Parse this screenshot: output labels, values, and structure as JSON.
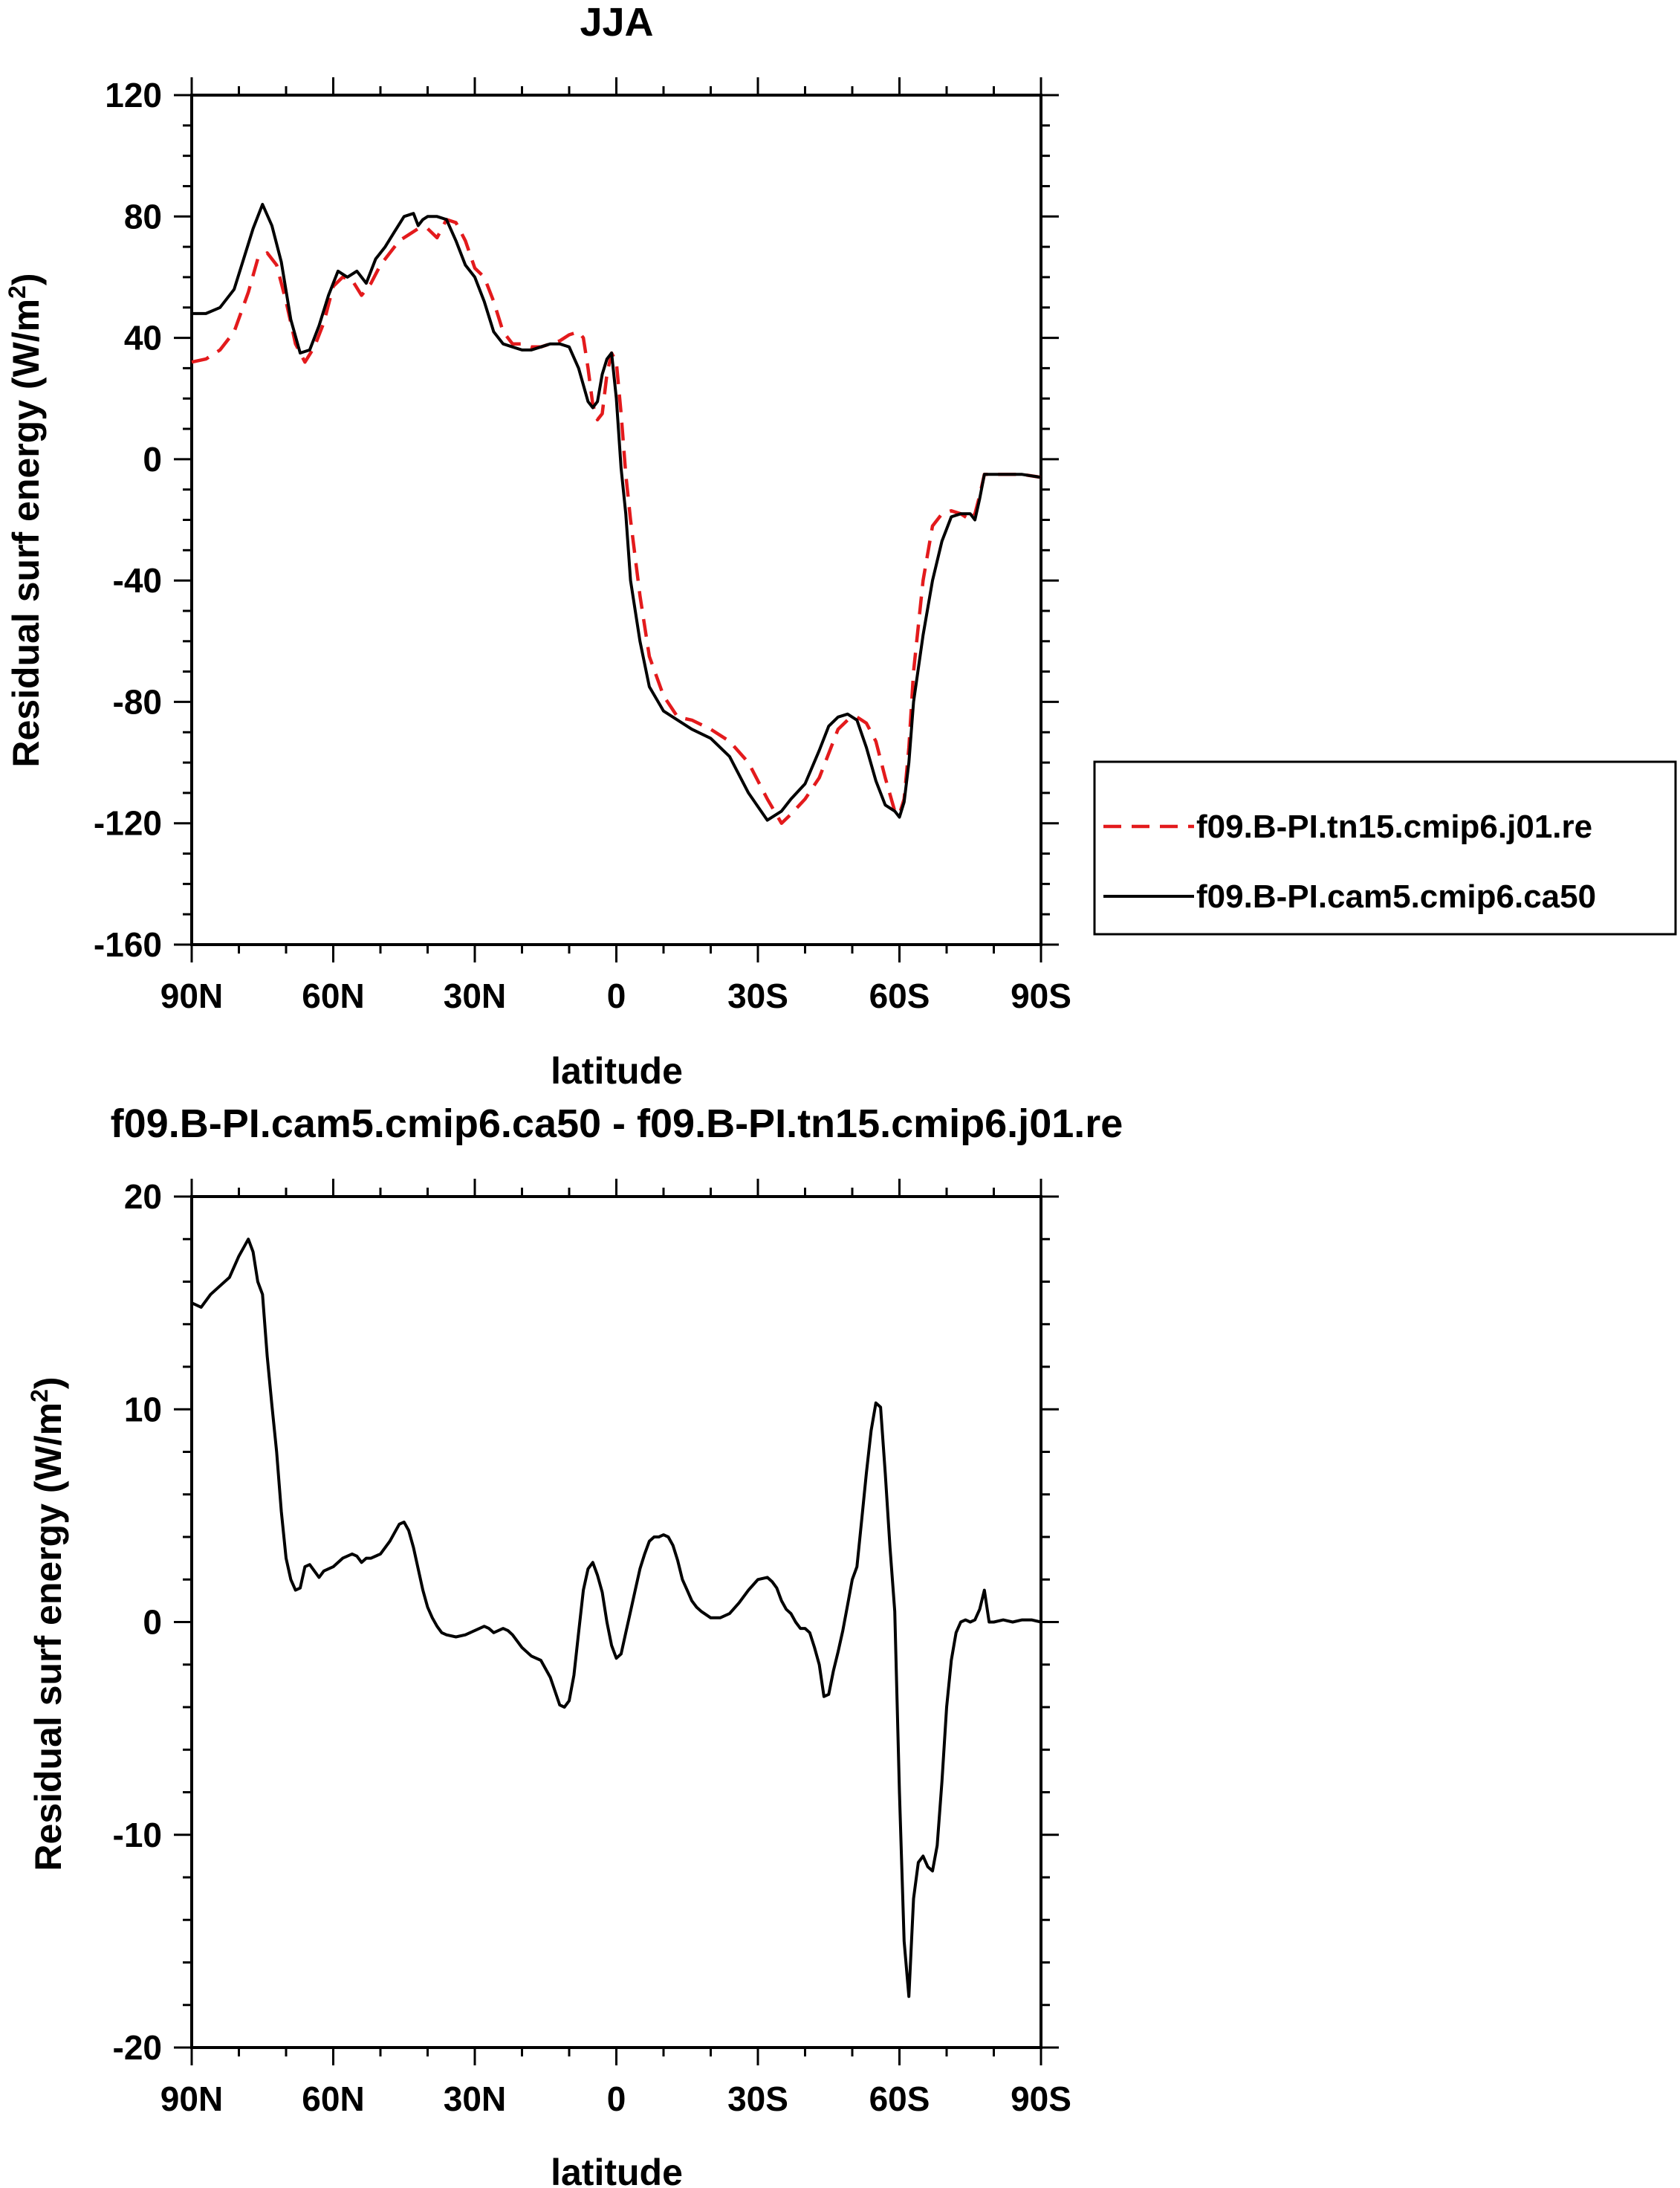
{
  "colors": {
    "model_a": "#e31a1c",
    "model_b": "#000000",
    "frame": "#000000"
  },
  "chart_data": [
    {
      "type": "line",
      "title": "JJA",
      "xlabel": "latitude",
      "ylabel": "Residual surf energy (W/m²)",
      "ylabel_main": "Residual surf energy (W/m",
      "ylabel_sup": "2",
      "ylabel_close": ")",
      "xlim": [
        90,
        -90
      ],
      "ylim": [
        -160,
        120
      ],
      "x_unit": "degrees latitude (positive = N, negative = S)",
      "xticks": [
        90,
        60,
        30,
        0,
        -30,
        -60,
        -90
      ],
      "xticklabels": [
        "90N",
        "60N",
        "30N",
        "0",
        "30S",
        "60S",
        "90S"
      ],
      "yticks": [
        120,
        80,
        40,
        0,
        -40,
        -80,
        -120,
        -160
      ],
      "yticklabels": [
        "120",
        "80",
        "40",
        "0",
        "-40",
        "-80",
        "-120",
        "-160"
      ],
      "legend_position": "right",
      "series": [
        {
          "name": "f09.B-PI.tn15.cmip6.j01.re",
          "style": "dashed",
          "color": "#e31a1c",
          "x": [
            90,
            87,
            84,
            81,
            78,
            76,
            74,
            72,
            70,
            68,
            66,
            64,
            62,
            60,
            58,
            56,
            54,
            52,
            50,
            48,
            46,
            44,
            42,
            40,
            38,
            36,
            34,
            32,
            30,
            28,
            26,
            24,
            22,
            20,
            18,
            16,
            14,
            12,
            10,
            8,
            7,
            6,
            5,
            4,
            3,
            2,
            1,
            0,
            -1,
            -2,
            -3,
            -5,
            -7,
            -10,
            -13,
            -16,
            -20,
            -24,
            -28,
            -32,
            -35,
            -37,
            -40,
            -43,
            -45,
            -47,
            -49,
            -51,
            -53,
            -55,
            -57,
            -59,
            -60,
            -61,
            -62,
            -63,
            -65,
            -67,
            -69,
            -71,
            -73,
            -75,
            -76,
            -77,
            -78,
            -80,
            -83,
            -86,
            -90
          ],
          "y": [
            32,
            33,
            36,
            42,
            55,
            66,
            68,
            64,
            52,
            38,
            32,
            37,
            45,
            57,
            60,
            59,
            54,
            58,
            64,
            68,
            72,
            74,
            76,
            76,
            73,
            79,
            78,
            72,
            63,
            60,
            52,
            42,
            38,
            38,
            37,
            37,
            38,
            39,
            41,
            42,
            40,
            30,
            18,
            13,
            15,
            28,
            35,
            32,
            15,
            -5,
            -20,
            -45,
            -65,
            -78,
            -85,
            -86,
            -89,
            -93,
            -100,
            -112,
            -120,
            -117,
            -112,
            -105,
            -97,
            -89,
            -86,
            -85,
            -87,
            -93,
            -105,
            -116,
            -117,
            -112,
            -95,
            -70,
            -40,
            -22,
            -18,
            -17,
            -18,
            -20,
            -18,
            -12,
            -5,
            -5,
            -5,
            -5,
            -6
          ]
        },
        {
          "name": "f09.B-PI.cam5.cmip6.ca50",
          "style": "solid",
          "color": "#000000",
          "x": [
            90,
            87,
            84,
            81,
            79,
            77,
            75,
            73,
            71,
            69,
            67,
            65,
            63,
            61,
            59,
            57,
            55,
            53,
            51,
            49,
            47,
            45,
            43,
            42,
            41,
            40,
            38,
            36,
            34,
            32,
            30,
            28,
            26,
            24,
            22,
            20,
            18,
            16,
            14,
            12,
            10,
            8,
            6,
            5,
            4,
            3,
            2,
            1,
            0,
            -1,
            -2,
            -3,
            -5,
            -7,
            -10,
            -13,
            -16,
            -20,
            -24,
            -28,
            -32,
            -35,
            -37,
            -40,
            -43,
            -45,
            -47,
            -49,
            -51,
            -53,
            -55,
            -57,
            -59,
            -60,
            -61,
            -62,
            -63,
            -65,
            -67,
            -69,
            -71,
            -73,
            -75,
            -76,
            -77,
            -78,
            -80,
            -83,
            -86,
            -90
          ],
          "y": [
            48,
            48,
            50,
            56,
            66,
            76,
            84,
            77,
            65,
            46,
            35,
            36,
            44,
            54,
            62,
            60,
            62,
            58,
            66,
            70,
            75,
            80,
            81,
            77,
            79,
            80,
            80,
            79,
            72,
            64,
            60,
            52,
            42,
            38,
            37,
            36,
            36,
            37,
            38,
            38,
            37,
            30,
            19,
            17,
            19,
            28,
            33,
            35,
            20,
            -3,
            -18,
            -40,
            -60,
            -75,
            -83,
            -86,
            -89,
            -92,
            -98,
            -110,
            -119,
            -116,
            -112,
            -107,
            -96,
            -88,
            -85,
            -84,
            -86,
            -95,
            -106,
            -114,
            -116,
            -118,
            -113,
            -100,
            -80,
            -58,
            -40,
            -27,
            -19,
            -18,
            -18,
            -20,
            -13,
            -5,
            -5,
            -5,
            -5,
            -6
          ]
        }
      ]
    },
    {
      "type": "line",
      "title": "f09.B-PI.cam5.cmip6.ca50 - f09.B-PI.tn15.cmip6.j01.re",
      "xlabel": "latitude",
      "ylabel": "Residual surf energy (W/m²)",
      "ylabel_main": "Residual surf energy (W/m",
      "ylabel_sup": "2",
      "ylabel_close": ")",
      "xlim": [
        90,
        -90
      ],
      "ylim": [
        -20,
        20
      ],
      "x_unit": "degrees latitude (positive = N, negative = S)",
      "xticks": [
        90,
        60,
        30,
        0,
        -30,
        -60,
        -90
      ],
      "xticklabels": [
        "90N",
        "60N",
        "30N",
        "0",
        "30S",
        "60S",
        "90S"
      ],
      "yticks": [
        20,
        10,
        0,
        -10,
        -20
      ],
      "yticklabels": [
        "20",
        "10",
        "0",
        "-10",
        "-20"
      ],
      "series": [
        {
          "style": "solid",
          "color": "#000000",
          "x": [
            90,
            88,
            86,
            84,
            82,
            80,
            79,
            78,
            77,
            76,
            75,
            74,
            73,
            72,
            71,
            70,
            69,
            68,
            67,
            66,
            65,
            64,
            63,
            62,
            61,
            60,
            58,
            56,
            55,
            54,
            53,
            52,
            50,
            48,
            47,
            46,
            45,
            44,
            43,
            42,
            41,
            40,
            39,
            38,
            37,
            36,
            34,
            32,
            30,
            28,
            27,
            26,
            25,
            24,
            23,
            22,
            20,
            18,
            16,
            14,
            12,
            11,
            10,
            9,
            8,
            7,
            6,
            5,
            4,
            3,
            2,
            1,
            0,
            -1,
            -2,
            -3,
            -4,
            -5,
            -6,
            -7,
            -8,
            -9,
            -10,
            -11,
            -12,
            -13,
            -14,
            -15,
            -16,
            -17,
            -18,
            -20,
            -22,
            -24,
            -26,
            -28,
            -30,
            -32,
            -33,
            -34,
            -35,
            -36,
            -37,
            -38,
            -39,
            -40,
            -41,
            -42,
            -43,
            -44,
            -45,
            -46,
            -47,
            -48,
            -49,
            -50,
            -51,
            -52,
            -53,
            -54,
            -55,
            -56,
            -57,
            -58,
            -59,
            -60,
            -61,
            -62,
            -63,
            -64,
            -65,
            -66,
            -67,
            -68,
            -69,
            -70,
            -71,
            -72,
            -73,
            -74,
            -75,
            -76,
            -77,
            -78,
            -79,
            -80,
            -82,
            -84,
            -86,
            -88,
            -90
          ],
          "y": [
            15.0,
            14.8,
            15.4,
            15.8,
            16.2,
            17.2,
            17.6,
            18.0,
            17.4,
            16.0,
            15.4,
            12.5,
            10.2,
            8.0,
            5.2,
            3.0,
            2.0,
            1.5,
            1.6,
            2.6,
            2.7,
            2.4,
            2.1,
            2.4,
            2.5,
            2.6,
            3.0,
            3.2,
            3.1,
            2.8,
            3.0,
            3.0,
            3.2,
            3.8,
            4.2,
            4.6,
            4.7,
            4.3,
            3.5,
            2.5,
            1.5,
            0.7,
            0.2,
            -0.2,
            -0.5,
            -0.6,
            -0.7,
            -0.6,
            -0.4,
            -0.2,
            -0.3,
            -0.5,
            -0.4,
            -0.3,
            -0.4,
            -0.6,
            -1.2,
            -1.6,
            -1.8,
            -2.6,
            -3.9,
            -4.0,
            -3.7,
            -2.5,
            -0.5,
            1.5,
            2.5,
            2.8,
            2.2,
            1.4,
            0.0,
            -1.1,
            -1.7,
            -1.5,
            -0.5,
            0.5,
            1.5,
            2.5,
            3.2,
            3.8,
            4.0,
            4.0,
            4.1,
            4.0,
            3.6,
            2.9,
            2.0,
            1.5,
            1.0,
            0.7,
            0.5,
            0.2,
            0.2,
            0.4,
            0.9,
            1.5,
            2.0,
            2.1,
            1.9,
            1.6,
            1.0,
            0.6,
            0.4,
            0.0,
            -0.3,
            -0.3,
            -0.5,
            -1.2,
            -2.0,
            -3.5,
            -3.4,
            -2.3,
            -1.4,
            -0.4,
            0.8,
            2.0,
            2.6,
            4.8,
            7.0,
            9.0,
            10.3,
            10.1,
            7.0,
            3.5,
            0.5,
            -8.0,
            -15.0,
            -17.6,
            -13.0,
            -11.3,
            -11.0,
            -11.5,
            -11.7,
            -10.5,
            -7.5,
            -4.0,
            -1.8,
            -0.5,
            0.0,
            0.1,
            0.0,
            0.1,
            0.6,
            1.5,
            0.0,
            0.0,
            0.1,
            0.0,
            0.1,
            0.1,
            0.0
          ]
        }
      ]
    }
  ]
}
